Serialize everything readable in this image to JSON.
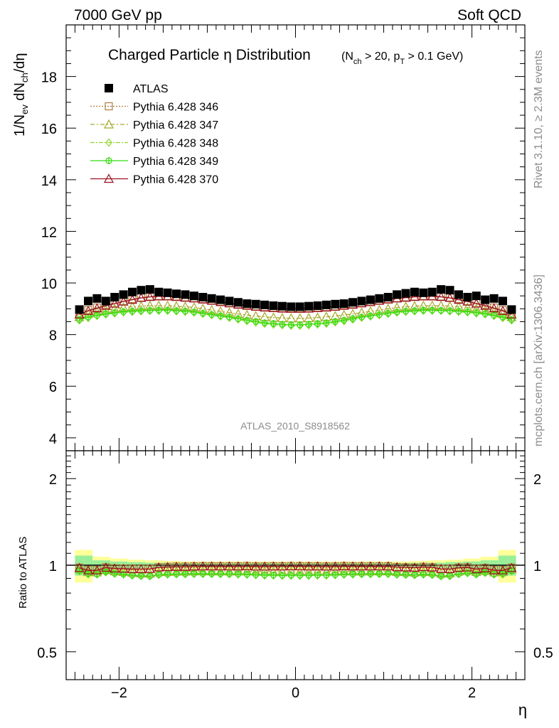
{
  "header": {
    "left": "7000 GeV pp",
    "right": "Soft QCD"
  },
  "side_text": {
    "rivet": "Rivet 3.1.10, ≥ 2.3M events",
    "mcplots": "mcplots.cern.ch [arXiv:1306.3436]"
  },
  "watermark": "ATLAS_2010_S8918562",
  "chart_data": [
    {
      "type": "scatter",
      "title": "Charged Particle η Distribution",
      "title_cut": "(N_ch > 20, p_T > 0.1 GeV)",
      "xlabel": "η",
      "ylabel": "1/N_ev dN_ch/dη",
      "xlim": [
        -2.6,
        2.6
      ],
      "ylim": [
        3.5,
        20
      ],
      "yticks": [
        4,
        6,
        8,
        10,
        12,
        14,
        16,
        18
      ],
      "xticks": [
        -2,
        0,
        2
      ],
      "legend_position": "top-left",
      "x": [
        -2.45,
        -2.35,
        -2.25,
        -2.15,
        -2.05,
        -1.95,
        -1.85,
        -1.75,
        -1.65,
        -1.55,
        -1.45,
        -1.35,
        -1.25,
        -1.15,
        -1.05,
        -0.95,
        -0.85,
        -0.75,
        -0.65,
        -0.55,
        -0.45,
        -0.35,
        -0.25,
        -0.15,
        -0.05,
        0.05,
        0.15,
        0.25,
        0.35,
        0.45,
        0.55,
        0.65,
        0.75,
        0.85,
        0.95,
        1.05,
        1.15,
        1.25,
        1.35,
        1.45,
        1.55,
        1.65,
        1.75,
        1.85,
        1.95,
        2.05,
        2.15,
        2.25,
        2.35,
        2.45
      ],
      "series": [
        {
          "name": "ATLAS",
          "color": "#000000",
          "marker": "filled-square",
          "values": [
            8.97,
            9.3,
            9.4,
            9.3,
            9.45,
            9.55,
            9.65,
            9.72,
            9.75,
            9.65,
            9.62,
            9.58,
            9.55,
            9.5,
            9.45,
            9.4,
            9.35,
            9.3,
            9.25,
            9.2,
            9.18,
            9.15,
            9.12,
            9.1,
            9.08,
            9.08,
            9.1,
            9.12,
            9.15,
            9.18,
            9.2,
            9.25,
            9.3,
            9.35,
            9.4,
            9.45,
            9.55,
            9.6,
            9.65,
            9.62,
            9.65,
            9.75,
            9.72,
            9.55,
            9.45,
            9.5,
            9.35,
            9.4,
            9.3,
            8.97
          ]
        },
        {
          "name": "Pythia 6.428 346",
          "color": "#b07d3a",
          "marker": "open-square",
          "values": [
            8.8,
            8.95,
            9.05,
            9.15,
            9.22,
            9.3,
            9.38,
            9.44,
            9.48,
            9.5,
            9.5,
            9.48,
            9.45,
            9.42,
            9.38,
            9.33,
            9.28,
            9.23,
            9.18,
            9.14,
            9.1,
            9.07,
            9.05,
            9.03,
            9.02,
            9.02,
            9.03,
            9.05,
            9.07,
            9.1,
            9.14,
            9.18,
            9.23,
            9.28,
            9.33,
            9.38,
            9.42,
            9.45,
            9.48,
            9.5,
            9.5,
            9.48,
            9.44,
            9.38,
            9.3,
            9.22,
            9.15,
            9.05,
            8.95,
            8.8
          ]
        },
        {
          "name": "Pythia 6.428 347",
          "color": "#a8a82a",
          "marker": "open-triangle",
          "values": [
            8.68,
            8.8,
            8.88,
            8.95,
            9.0,
            9.05,
            9.08,
            9.1,
            9.12,
            9.12,
            9.12,
            9.1,
            9.08,
            9.05,
            9.0,
            8.95,
            8.9,
            8.85,
            8.8,
            8.76,
            8.72,
            8.69,
            8.66,
            8.64,
            8.63,
            8.63,
            8.64,
            8.66,
            8.69,
            8.72,
            8.76,
            8.8,
            8.85,
            8.9,
            8.95,
            9.0,
            9.05,
            9.08,
            9.1,
            9.12,
            9.12,
            9.12,
            9.1,
            9.08,
            9.05,
            9.0,
            8.95,
            8.88,
            8.8,
            8.68
          ]
        },
        {
          "name": "Pythia 6.428 348",
          "color": "#8fd62a",
          "marker": "open-diamond",
          "values": [
            8.55,
            8.64,
            8.72,
            8.78,
            8.82,
            8.86,
            8.88,
            8.9,
            8.92,
            8.92,
            8.92,
            8.9,
            8.88,
            8.85,
            8.8,
            8.75,
            8.7,
            8.65,
            8.58,
            8.52,
            8.47,
            8.42,
            8.39,
            8.36,
            8.34,
            8.34,
            8.36,
            8.39,
            8.42,
            8.47,
            8.52,
            8.58,
            8.65,
            8.7,
            8.75,
            8.8,
            8.85,
            8.88,
            8.9,
            8.92,
            8.92,
            8.92,
            8.9,
            8.88,
            8.86,
            8.82,
            8.78,
            8.72,
            8.64,
            8.55
          ]
        },
        {
          "name": "Pythia 6.428 349",
          "color": "#33dd11",
          "marker": "open-circle-cross",
          "values": [
            8.58,
            8.68,
            8.75,
            8.81,
            8.85,
            8.89,
            8.91,
            8.93,
            8.94,
            8.95,
            8.95,
            8.93,
            8.91,
            8.88,
            8.83,
            8.78,
            8.73,
            8.68,
            8.62,
            8.56,
            8.51,
            8.46,
            8.43,
            8.4,
            8.38,
            8.38,
            8.4,
            8.43,
            8.46,
            8.51,
            8.56,
            8.62,
            8.68,
            8.73,
            8.78,
            8.83,
            8.88,
            8.91,
            8.93,
            8.95,
            8.95,
            8.94,
            8.93,
            8.91,
            8.89,
            8.85,
            8.81,
            8.75,
            8.68,
            8.58
          ]
        },
        {
          "name": "Pythia 6.428 370",
          "color": "#9a1020",
          "marker": "open-triangle",
          "values": [
            8.78,
            8.92,
            9.02,
            9.12,
            9.2,
            9.28,
            9.35,
            9.42,
            9.46,
            9.48,
            9.48,
            9.46,
            9.43,
            9.4,
            9.36,
            9.31,
            9.26,
            9.21,
            9.16,
            9.12,
            9.08,
            9.05,
            9.03,
            9.01,
            9.0,
            9.0,
            9.01,
            9.03,
            9.05,
            9.08,
            9.12,
            9.16,
            9.21,
            9.26,
            9.31,
            9.36,
            9.4,
            9.43,
            9.46,
            9.48,
            9.48,
            9.46,
            9.42,
            9.35,
            9.28,
            9.2,
            9.12,
            9.02,
            8.92,
            8.78
          ]
        }
      ]
    },
    {
      "type": "scatter",
      "title": "",
      "xlabel": "η",
      "ylabel": "Ratio to ATLAS",
      "xlim": [
        -2.6,
        2.6
      ],
      "ylim": [
        0.4,
        2.5
      ],
      "scale": "log",
      "yticks": [
        0.5,
        1,
        2
      ],
      "xticks": [
        -2,
        0,
        2
      ],
      "bands": {
        "green_halfwidth": [
          0.08,
          0.08,
          0.04,
          0.04,
          0.03,
          0.03,
          0.025,
          0.025,
          0.02,
          0.02,
          0.02,
          0.02,
          0.018,
          0.018,
          0.018,
          0.018,
          0.018,
          0.018,
          0.018,
          0.018,
          0.018,
          0.018,
          0.018,
          0.018,
          0.018,
          0.018,
          0.018,
          0.018,
          0.018,
          0.018,
          0.018,
          0.018,
          0.018,
          0.018,
          0.018,
          0.018,
          0.018,
          0.018,
          0.02,
          0.02,
          0.02,
          0.02,
          0.025,
          0.025,
          0.03,
          0.03,
          0.04,
          0.04,
          0.08,
          0.08
        ],
        "yellow_halfwidth": [
          0.13,
          0.13,
          0.07,
          0.07,
          0.055,
          0.055,
          0.045,
          0.045,
          0.04,
          0.04,
          0.035,
          0.035,
          0.03,
          0.03,
          0.03,
          0.03,
          0.03,
          0.03,
          0.03,
          0.03,
          0.03,
          0.03,
          0.03,
          0.03,
          0.03,
          0.03,
          0.03,
          0.03,
          0.03,
          0.03,
          0.03,
          0.03,
          0.03,
          0.03,
          0.03,
          0.03,
          0.03,
          0.03,
          0.035,
          0.035,
          0.04,
          0.04,
          0.045,
          0.045,
          0.055,
          0.055,
          0.07,
          0.07,
          0.13,
          0.13
        ]
      }
    }
  ]
}
